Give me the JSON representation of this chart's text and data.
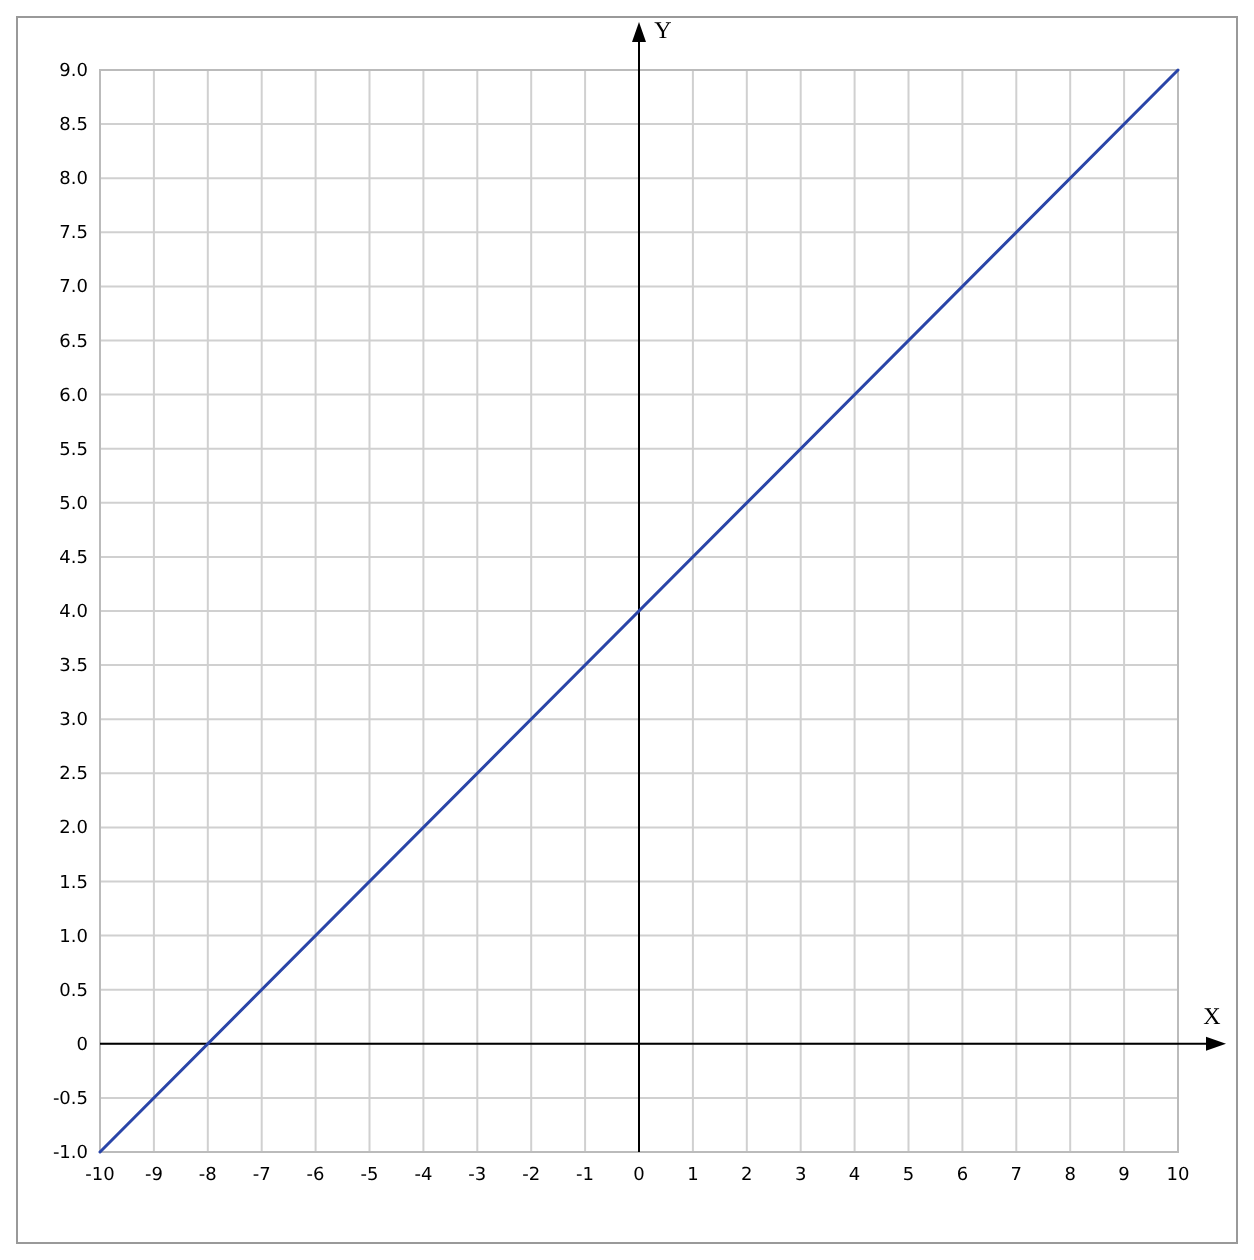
{
  "chart_data": {
    "type": "line",
    "xlabel": "X",
    "ylabel": "Y",
    "x": [
      -10,
      10
    ],
    "series": [
      {
        "color": "#2a45a8",
        "values": [
          -1,
          9
        ]
      }
    ],
    "xlim": [
      -10,
      10
    ],
    "ylim": [
      -1,
      9
    ],
    "xticks": [
      -10,
      -9,
      -8,
      -7,
      -6,
      -5,
      -4,
      -3,
      -2,
      -1,
      0,
      1,
      2,
      3,
      4,
      5,
      6,
      7,
      8,
      9,
      10
    ],
    "yticks": [
      {
        "value": -1,
        "label": "-1.0"
      },
      -0.5,
      0,
      {
        "value": 0.5,
        "label": "0.5"
      },
      {
        "value": 1,
        "label": "1.0"
      },
      {
        "value": 1.5,
        "label": "1.5"
      },
      {
        "value": 2,
        "label": "2.0"
      },
      {
        "value": 2.5,
        "label": "2.5"
      },
      {
        "value": 3,
        "label": "3.0"
      },
      {
        "value": 3.5,
        "label": "3.5"
      },
      {
        "value": 4,
        "label": "4.0"
      },
      {
        "value": 4.5,
        "label": "4.5"
      },
      {
        "value": 5,
        "label": "5.0"
      },
      {
        "value": 5.5,
        "label": "5.5"
      },
      {
        "value": 6,
        "label": "6.0"
      },
      {
        "value": 6.5,
        "label": "6.5"
      },
      {
        "value": 7,
        "label": "7.0"
      },
      {
        "value": 7.5,
        "label": "7.5"
      },
      {
        "value": 8,
        "label": "8.0"
      },
      {
        "value": 8.5,
        "label": "8.5"
      },
      {
        "value": 9,
        "label": "9.0"
      }
    ],
    "grid": true
  }
}
